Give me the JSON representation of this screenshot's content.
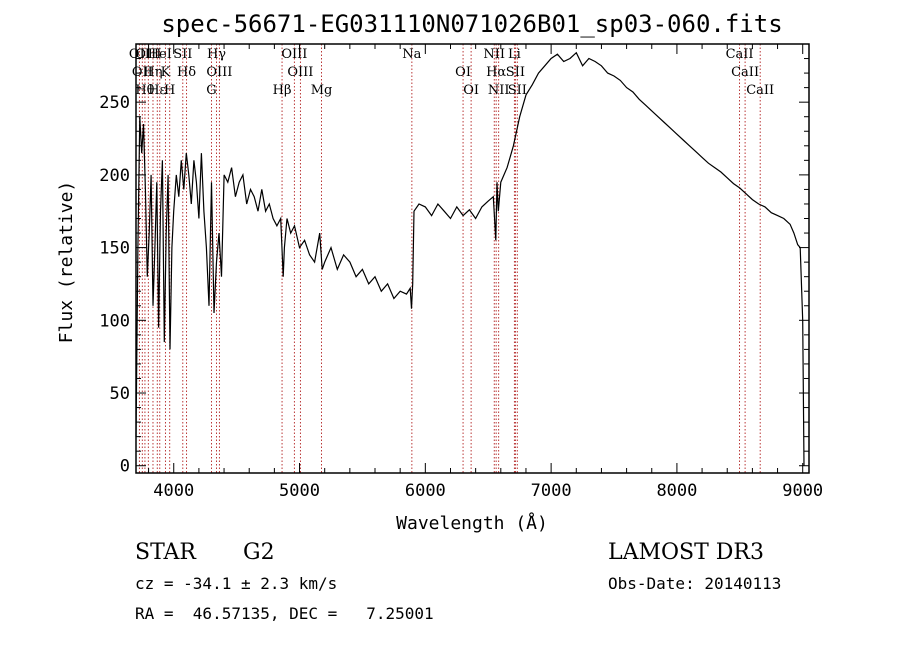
{
  "chart_data": {
    "type": "line",
    "title": "spec-56671-EG031110N071026B01_sp03-060.fits",
    "xlabel": "Wavelength (Å)",
    "ylabel": "Flux (relative)",
    "xlim": [
      3700,
      9050
    ],
    "ylim": [
      -5,
      290
    ],
    "xticks": [
      4000,
      5000,
      6000,
      7000,
      8000,
      9000
    ],
    "yticks": [
      0,
      50,
      100,
      150,
      200,
      250
    ],
    "grid": false,
    "series": [
      {
        "x": [
          3700,
          3715,
          3730,
          3745,
          3760,
          3775,
          3790,
          3805,
          3820,
          3835,
          3850,
          3865,
          3880,
          3895,
          3910,
          3925,
          3940,
          3955,
          3970,
          3985,
          4000,
          4020,
          4040,
          4060,
          4080,
          4100,
          4120,
          4140,
          4160,
          4180,
          4200,
          4220,
          4240,
          4260,
          4280,
          4300,
          4320,
          4340,
          4360,
          4380,
          4400,
          4430,
          4460,
          4490,
          4520,
          4550,
          4580,
          4610,
          4640,
          4670,
          4700,
          4730,
          4760,
          4790,
          4820,
          4850,
          4870,
          4880,
          4900,
          4930,
          4960,
          5000,
          5040,
          5080,
          5120,
          5160,
          5180,
          5200,
          5250,
          5300,
          5350,
          5400,
          5450,
          5500,
          5550,
          5600,
          5650,
          5700,
          5750,
          5800,
          5850,
          5880,
          5890,
          5900,
          5910,
          5950,
          6000,
          6050,
          6100,
          6150,
          6200,
          6250,
          6300,
          6350,
          6400,
          6450,
          6500,
          6540,
          6560,
          6570,
          6580,
          6600,
          6650,
          6700,
          6750,
          6800,
          6850,
          6900,
          6950,
          7000,
          7050,
          7100,
          7150,
          7200,
          7250,
          7300,
          7350,
          7400,
          7450,
          7500,
          7550,
          7600,
          7650,
          7700,
          7750,
          7800,
          7850,
          7900,
          7950,
          8000,
          8050,
          8100,
          8150,
          8200,
          8250,
          8300,
          8350,
          8400,
          8450,
          8500,
          8550,
          8600,
          8650,
          8700,
          8750,
          8800,
          8850,
          8900,
          8930,
          8960,
          8980,
          9000,
          9010
        ],
        "y": [
          20,
          150,
          240,
          215,
          235,
          190,
          130,
          160,
          200,
          110,
          150,
          195,
          95,
          175,
          210,
          85,
          160,
          200,
          80,
          150,
          175,
          200,
          185,
          210,
          190,
          215,
          200,
          180,
          210,
          195,
          170,
          215,
          175,
          150,
          110,
          195,
          105,
          140,
          160,
          130,
          200,
          195,
          205,
          185,
          195,
          200,
          180,
          190,
          185,
          175,
          190,
          175,
          180,
          170,
          165,
          170,
          130,
          150,
          170,
          160,
          165,
          150,
          155,
          145,
          140,
          160,
          135,
          140,
          150,
          135,
          145,
          140,
          130,
          135,
          125,
          130,
          120,
          125,
          115,
          120,
          118,
          122,
          108,
          125,
          175,
          180,
          178,
          172,
          180,
          175,
          170,
          178,
          172,
          176,
          170,
          178,
          182,
          185,
          155,
          195,
          175,
          195,
          205,
          220,
          240,
          255,
          262,
          270,
          275,
          280,
          283,
          278,
          280,
          284,
          275,
          280,
          278,
          275,
          270,
          268,
          265,
          260,
          257,
          252,
          248,
          244,
          240,
          236,
          232,
          228,
          224,
          220,
          216,
          212,
          208,
          205,
          202,
          198,
          194,
          191,
          187,
          183,
          180,
          178,
          174,
          172,
          170,
          166,
          160,
          152,
          150,
          100,
          0
        ]
      }
    ],
    "line_markers": [
      {
        "wl": 3727,
        "label": "OII"
      },
      {
        "wl": 3750,
        "label": "OII"
      },
      {
        "wl": 3771,
        "label": "Hθ"
      },
      {
        "wl": 3798,
        "label": "OIII"
      },
      {
        "wl": 3835,
        "label": "Hη"
      },
      {
        "wl": 3869,
        "label": "Hε"
      },
      {
        "wl": 3889,
        "label": "HeI"
      },
      {
        "wl": 3934,
        "label": "K"
      },
      {
        "wl": 3968,
        "label": "H"
      },
      {
        "wl": 4072,
        "label": "SII"
      },
      {
        "wl": 4102,
        "label": "Hδ"
      },
      {
        "wl": 4300,
        "label": "G"
      },
      {
        "wl": 4340,
        "label": "Hγ"
      },
      {
        "wl": 4363,
        "label": "OIII"
      },
      {
        "wl": 4861,
        "label": "Hβ"
      },
      {
        "wl": 4959,
        "label": "OIII"
      },
      {
        "wl": 5007,
        "label": "OIII"
      },
      {
        "wl": 5175,
        "label": "Mg"
      },
      {
        "wl": 5893,
        "label": "Na"
      },
      {
        "wl": 6300,
        "label": "OI"
      },
      {
        "wl": 6364,
        "label": "OI"
      },
      {
        "wl": 6548,
        "label": "NII"
      },
      {
        "wl": 6563,
        "label": "Hα"
      },
      {
        "wl": 6583,
        "label": "NII"
      },
      {
        "wl": 6708,
        "label": "Li"
      },
      {
        "wl": 6716,
        "label": "SII"
      },
      {
        "wl": 6731,
        "label": "SII"
      },
      {
        "wl": 8498,
        "label": "CaII"
      },
      {
        "wl": 8542,
        "label": "CaII"
      },
      {
        "wl": 8662,
        "label": "CaII"
      }
    ]
  },
  "info": {
    "object_class": "STAR",
    "subclass": "G2",
    "survey": "LAMOST DR3",
    "velocity": "cz = -34.1 ± 2.3 km/s",
    "obs_date": "Obs-Date: 20140113",
    "coords": "RA =  46.57135, DEC =   7.25001"
  }
}
